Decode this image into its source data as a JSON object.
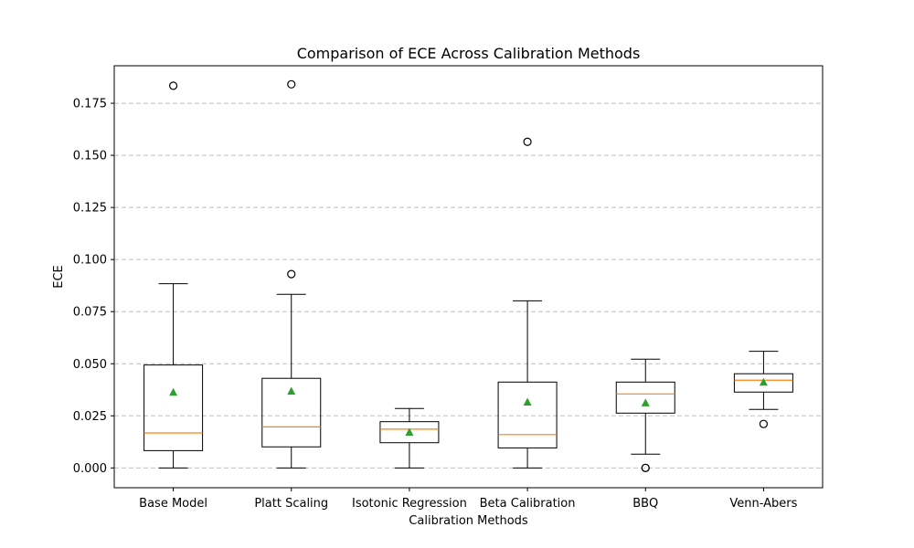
{
  "chart_data": {
    "type": "box",
    "title": "Comparison of ECE Across Calibration Methods",
    "xlabel": "Calibration Methods",
    "ylabel": "ECE",
    "ylim": [
      -0.0095,
      0.193
    ],
    "yticks": [
      "0.000",
      "0.025",
      "0.050",
      "0.075",
      "0.100",
      "0.125",
      "0.150",
      "0.175"
    ],
    "grid": "y-dashed",
    "categories": [
      "Base Model",
      "Platt Scaling",
      "Isotonic Regression",
      "Beta Calibration",
      "BBQ",
      "Venn-Abers"
    ],
    "boxes": [
      {
        "category": "Base Model",
        "whisker_low": 0.0,
        "q1": 0.0083,
        "median": 0.0168,
        "q3": 0.0494,
        "whisker_high": 0.0884,
        "mean": 0.0362,
        "outliers": [
          0.1834
        ]
      },
      {
        "category": "Platt Scaling",
        "whisker_low": 0.0,
        "q1": 0.0101,
        "median": 0.0197,
        "q3": 0.043,
        "whisker_high": 0.0833,
        "mean": 0.0367,
        "outliers": [
          0.093,
          0.1841
        ]
      },
      {
        "category": "Isotonic Regression",
        "whisker_low": 0.0,
        "q1": 0.0121,
        "median": 0.0186,
        "q3": 0.0222,
        "whisker_high": 0.0285,
        "mean": 0.017,
        "outliers": []
      },
      {
        "category": "Beta Calibration",
        "whisker_low": 0.0,
        "q1": 0.0096,
        "median": 0.016,
        "q3": 0.0412,
        "whisker_high": 0.0802,
        "mean": 0.0315,
        "outliers": [
          0.1565
        ]
      },
      {
        "category": "BBQ",
        "whisker_low": 0.0066,
        "q1": 0.0263,
        "median": 0.0355,
        "q3": 0.0412,
        "whisker_high": 0.0522,
        "mean": 0.0311,
        "outliers": [
          0.0,
          0.0
        ]
      },
      {
        "category": "Venn-Abers",
        "whisker_low": 0.0281,
        "q1": 0.0364,
        "median": 0.0421,
        "q3": 0.0452,
        "whisker_high": 0.056,
        "mean": 0.041,
        "outliers": [
          0.0211
        ]
      }
    ],
    "colors": {
      "box": "#000000",
      "median": "#ff7f0e",
      "mean": "#2ca02c",
      "grid": "#c0c0c0"
    }
  }
}
